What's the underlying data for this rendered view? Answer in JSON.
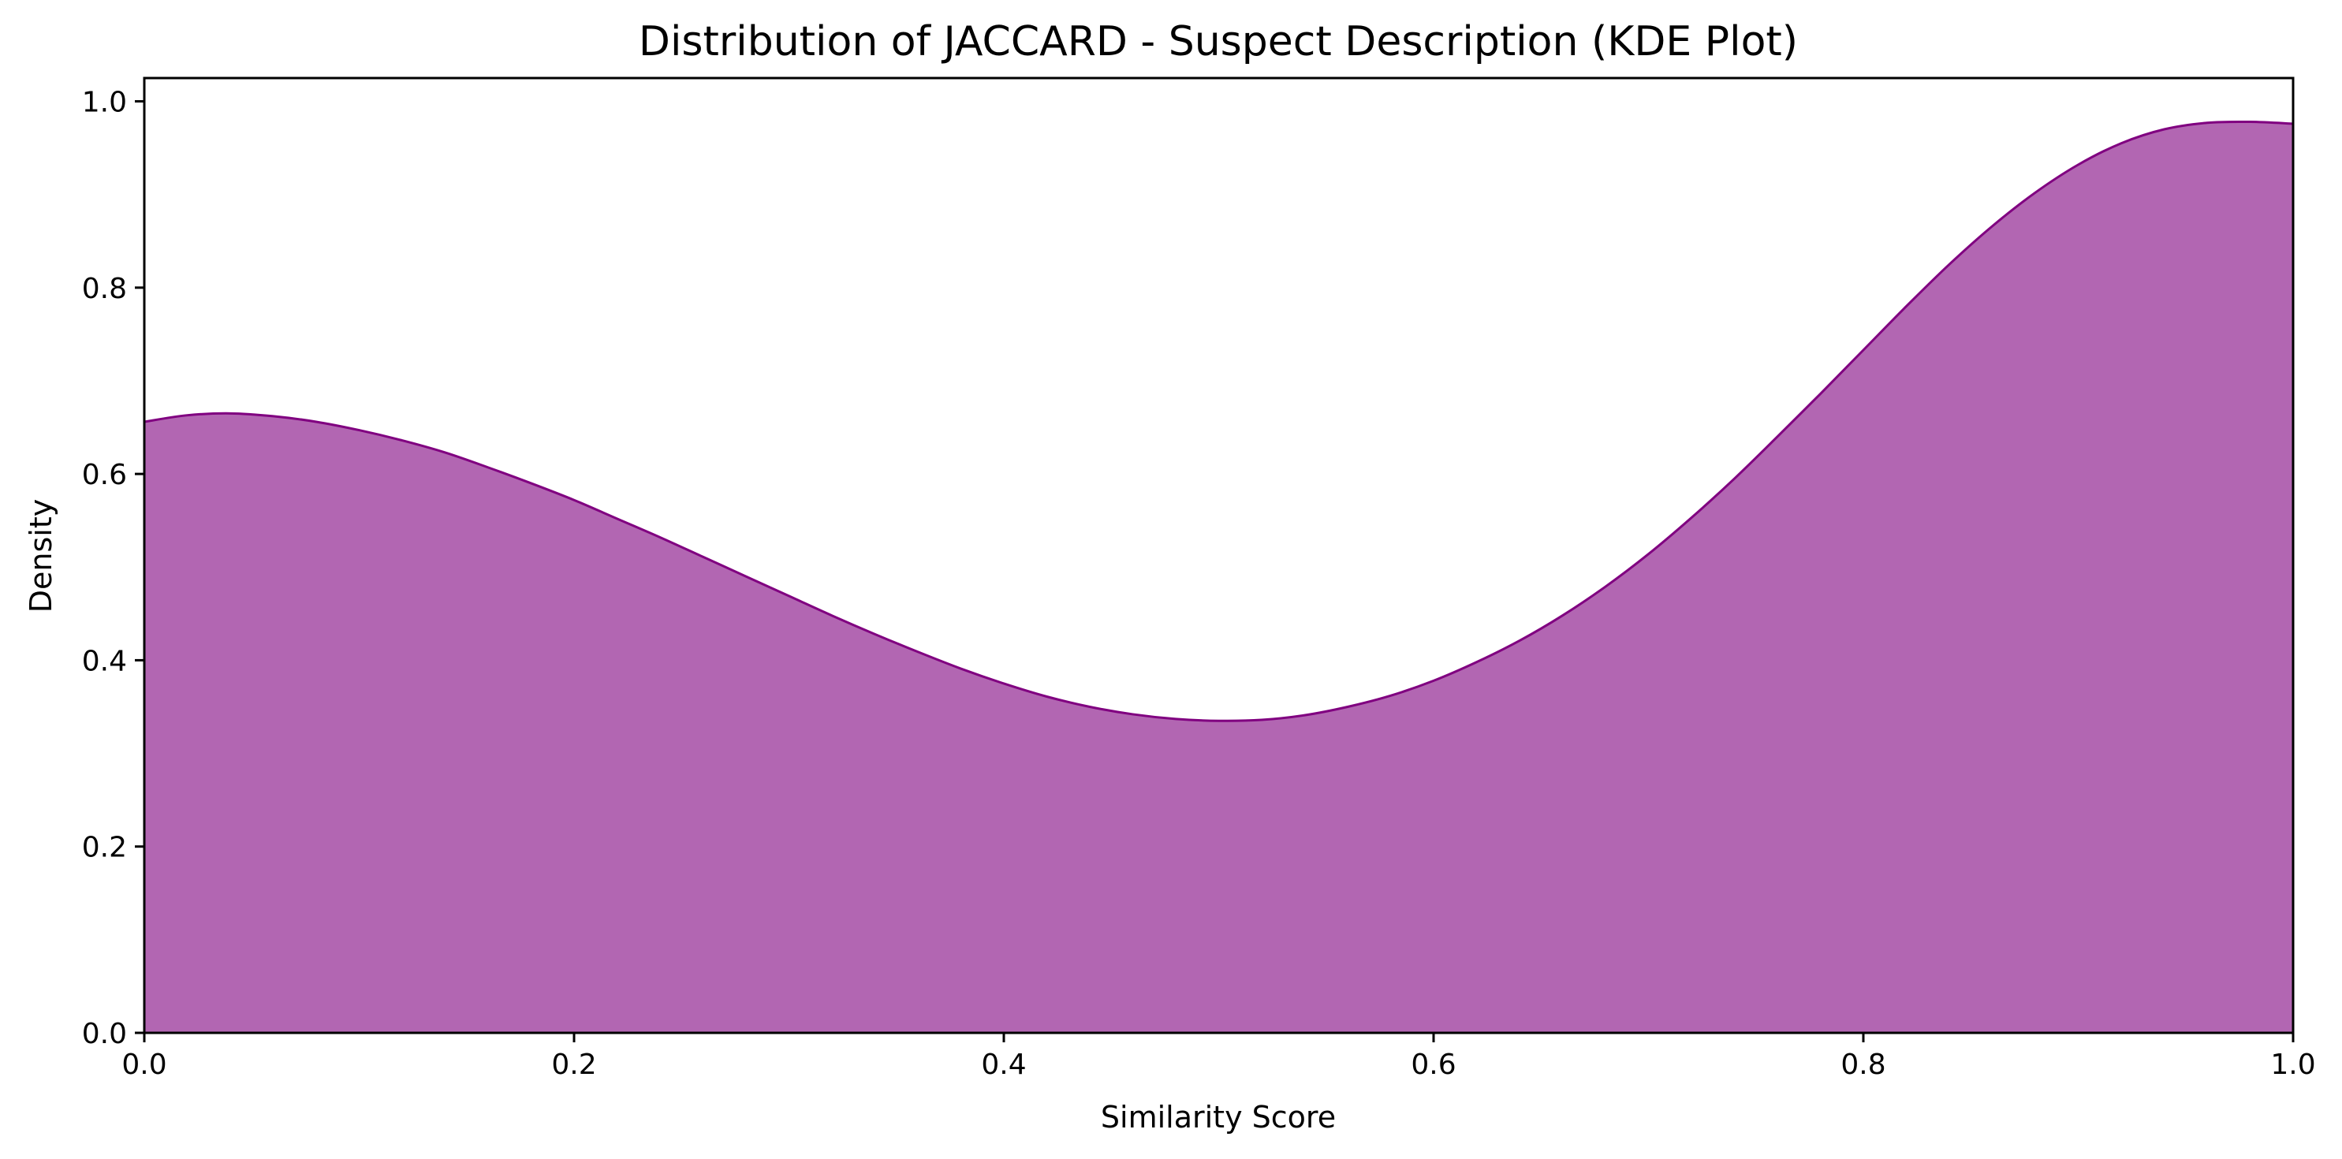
{
  "chart_data": {
    "type": "area",
    "title": "Distribution of JACCARD - Suspect Description (KDE Plot)",
    "xlabel": "Similarity Score",
    "ylabel": "Density",
    "xlim": [
      0.0,
      1.0
    ],
    "ylim": [
      0.0,
      1.025
    ],
    "xticks": [
      0.0,
      0.2,
      0.4,
      0.6,
      0.8,
      1.0
    ],
    "xtick_labels": [
      "0.0",
      "0.2",
      "0.4",
      "0.6",
      "0.8",
      "1.0"
    ],
    "yticks": [
      0.0,
      0.2,
      0.4,
      0.6,
      0.8,
      1.0
    ],
    "ytick_labels": [
      "0.0",
      "0.2",
      "0.4",
      "0.6",
      "0.8",
      "1.0"
    ],
    "grid": false,
    "legend": "none",
    "colors": {
      "fill": "#b266b2",
      "line": "#800080"
    },
    "series": [
      {
        "x": [
          0.0,
          0.02,
          0.04,
          0.06,
          0.08,
          0.1,
          0.12,
          0.14,
          0.16,
          0.18,
          0.2,
          0.22,
          0.24,
          0.26,
          0.28,
          0.3,
          0.32,
          0.34,
          0.36,
          0.38,
          0.4,
          0.42,
          0.44,
          0.46,
          0.48,
          0.5,
          0.52,
          0.54,
          0.56,
          0.58,
          0.6,
          0.62,
          0.64,
          0.66,
          0.68,
          0.7,
          0.72,
          0.74,
          0.76,
          0.78,
          0.8,
          0.82,
          0.84,
          0.86,
          0.88,
          0.9,
          0.92,
          0.94,
          0.96,
          0.98,
          1.0
        ],
        "values": [
          0.656,
          0.663,
          0.665,
          0.662,
          0.656,
          0.647,
          0.636,
          0.623,
          0.607,
          0.59,
          0.572,
          0.552,
          0.532,
          0.511,
          0.49,
          0.469,
          0.448,
          0.428,
          0.409,
          0.391,
          0.375,
          0.361,
          0.35,
          0.342,
          0.337,
          0.335,
          0.336,
          0.341,
          0.35,
          0.362,
          0.378,
          0.398,
          0.421,
          0.448,
          0.479,
          0.514,
          0.553,
          0.595,
          0.64,
          0.686,
          0.733,
          0.78,
          0.825,
          0.866,
          0.902,
          0.932,
          0.955,
          0.97,
          0.977,
          0.978,
          0.976
        ]
      }
    ]
  }
}
